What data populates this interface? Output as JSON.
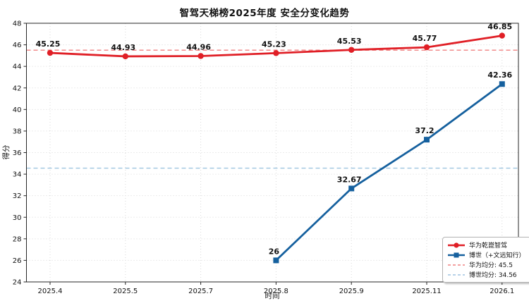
{
  "chart_data": {
    "type": "line",
    "title": "智驾天梯榜2025年度 安全分变化趋势",
    "xlabel": "时间",
    "ylabel": "得分",
    "categories": [
      "2025.4",
      "2025.5",
      "2025.7",
      "2025.8",
      "2025.9",
      "2025.11",
      "2026.1"
    ],
    "series": [
      {
        "name": "华为乾崑智驾",
        "color": "#e01f26",
        "marker": "circle",
        "values": [
          45.25,
          44.93,
          44.96,
          45.23,
          45.53,
          45.77,
          46.85
        ]
      },
      {
        "name": "博世（+文远知行）",
        "color": "#15609e",
        "marker": "square",
        "values": [
          null,
          null,
          null,
          26,
          32.67,
          37.2,
          42.36
        ]
      }
    ],
    "ref_lines": [
      {
        "label": "华为均分: 45.5",
        "value": 45.5,
        "color": "#f08080"
      },
      {
        "label": "博世均分: 34.56",
        "value": 34.56,
        "color": "#9ec4e0"
      }
    ],
    "ylim": [
      24,
      48
    ],
    "ytick_step": 2,
    "grid": true,
    "legend_position": "lower right"
  }
}
